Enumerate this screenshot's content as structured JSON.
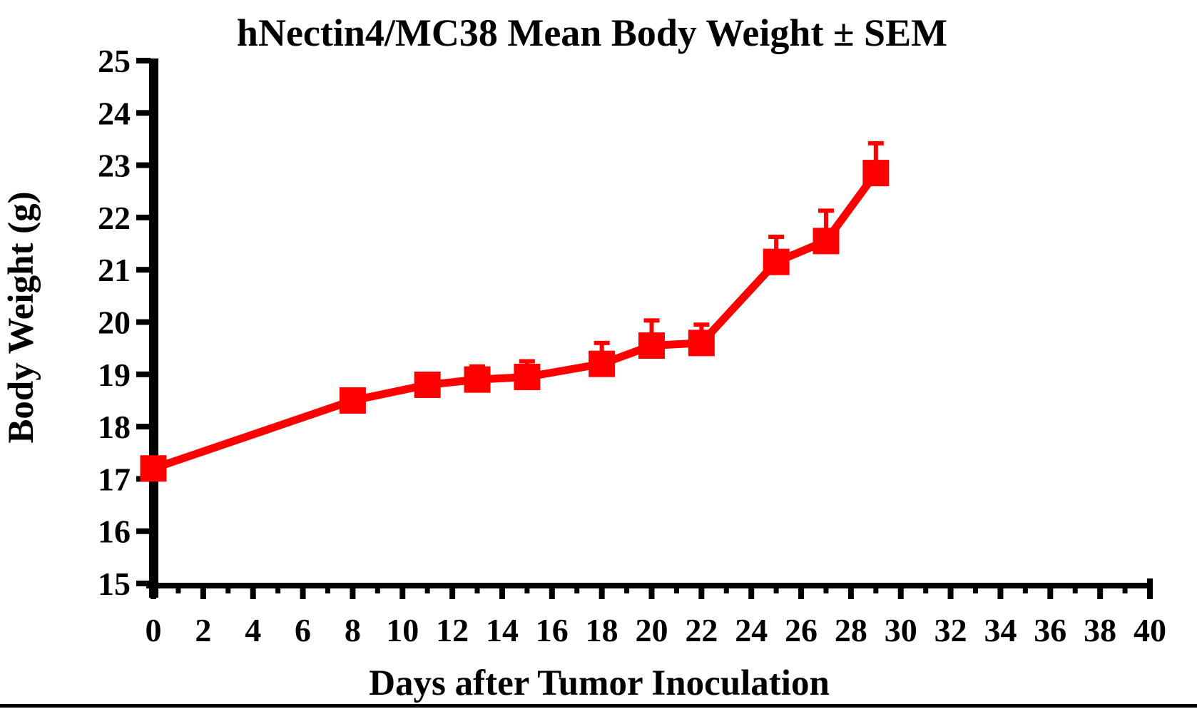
{
  "figure": {
    "background": "#FFFFFF",
    "bottom_rule_color": "#000000"
  },
  "colors": {
    "series": "#FF0000",
    "axis": "#000000",
    "text": "#000000"
  },
  "chart_data": {
    "type": "line",
    "title": "hNectin4/MC38 Mean Body Weight ± SEM",
    "xlabel": "Days after Tumor Inoculation",
    "ylabel": "Body Weight (g)",
    "xlim": [
      0,
      40
    ],
    "ylim": [
      15,
      25
    ],
    "grid": false,
    "legend_position": "none",
    "x_major_tick_step": 2,
    "x_minor_tick_step": 1,
    "y_tick_step": 1,
    "x_tick_labels": [
      "0",
      "2",
      "4",
      "6",
      "8",
      "10",
      "12",
      "14",
      "16",
      "18",
      "20",
      "22",
      "24",
      "26",
      "28",
      "30",
      "32",
      "34",
      "36",
      "38",
      "40"
    ],
    "y_tick_labels": [
      "15",
      "16",
      "17",
      "18",
      "19",
      "20",
      "21",
      "22",
      "23",
      "24",
      "25"
    ],
    "series": [
      {
        "name": "hNectin4/MC38 mean body weight",
        "color": "#FF0000",
        "marker": "square",
        "error_bar_style": "upper SEM whisker with cap",
        "x": [
          0,
          8,
          11,
          13,
          15,
          18,
          20,
          22,
          25,
          27,
          29
        ],
        "y": [
          17.2,
          18.5,
          18.8,
          18.9,
          18.95,
          19.2,
          19.55,
          19.6,
          21.15,
          21.55,
          22.85
        ],
        "sem_upper": [
          0.08,
          0.08,
          0.1,
          0.25,
          0.3,
          0.4,
          0.48,
          0.35,
          0.48,
          0.58,
          0.57
        ]
      }
    ]
  }
}
